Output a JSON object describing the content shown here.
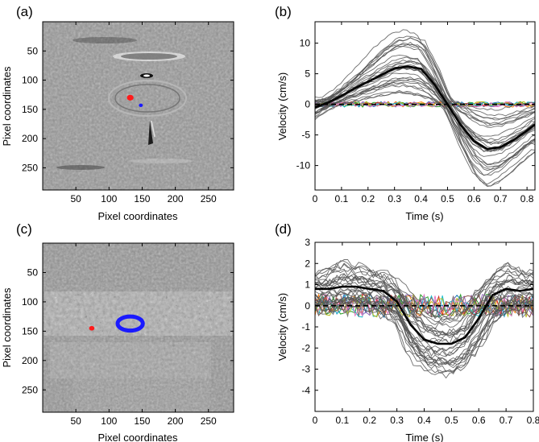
{
  "chart_data": [
    {
      "panel": "a",
      "label": "(a)",
      "type": "heatmap",
      "xlabel": "Pixel coordinates",
      "ylabel": "Pixel coordinates",
      "xlim": [
        0,
        288
      ],
      "ylim": [
        288,
        0
      ],
      "xticks": [
        50,
        100,
        150,
        200,
        250
      ],
      "yticks": [
        50,
        100,
        150,
        200,
        250
      ],
      "rois": [
        {
          "name": "red",
          "color": "#ff1a1a",
          "cx": 132,
          "cy": 130,
          "r": 5
        },
        {
          "name": "blue",
          "color": "#1a1aff",
          "cx": 148,
          "cy": 143,
          "r": 3
        }
      ]
    },
    {
      "panel": "b",
      "label": "(b)",
      "type": "line",
      "xlabel": "Time (s)",
      "ylabel": "Velocity (cm/s)",
      "xlim": [
        0,
        0.83
      ],
      "ylim": [
        -14,
        13.5
      ],
      "xticks": [
        0,
        0.1,
        0.2,
        0.3,
        0.4,
        0.5,
        0.6,
        0.7,
        0.8
      ],
      "yticks": [
        -10,
        -5,
        0,
        5,
        10
      ],
      "mean_curve": {
        "t": [
          0,
          0.05,
          0.1,
          0.15,
          0.2,
          0.25,
          0.3,
          0.35,
          0.4,
          0.45,
          0.5,
          0.55,
          0.6,
          0.65,
          0.7,
          0.75,
          0.8,
          0.83
        ],
        "v": [
          -0.5,
          0.3,
          1.4,
          2.6,
          3.7,
          4.8,
          5.9,
          6.2,
          5.8,
          3.3,
          0.0,
          -3.4,
          -6.0,
          -7.3,
          -7.0,
          -5.8,
          -4.3,
          -3.3
        ]
      },
      "spread": {
        "t": [
          0,
          0.05,
          0.1,
          0.15,
          0.2,
          0.25,
          0.3,
          0.35,
          0.4,
          0.45,
          0.5,
          0.55,
          0.6,
          0.65,
          0.7,
          0.75,
          0.8,
          0.83
        ],
        "upper": [
          1.0,
          1.5,
          3.3,
          5.5,
          8.0,
          10.3,
          12.0,
          12.5,
          11.5,
          7.0,
          1.0,
          0.5,
          0.0,
          -0.5,
          -0.5,
          0.0,
          0.3,
          0.5
        ],
        "lower": [
          -2.5,
          -1.0,
          0.0,
          0.3,
          0.8,
          1.2,
          1.5,
          1.5,
          1.0,
          0.5,
          -1.0,
          -6.5,
          -11.5,
          -14.0,
          -13.0,
          -11.0,
          -9.0,
          -8.0
        ]
      },
      "n_gray_curves": 30,
      "n_flat_curves": 8,
      "reference_level": 0
    },
    {
      "panel": "c",
      "label": "(c)",
      "type": "heatmap",
      "xlabel": "Pixel coordinates",
      "ylabel": "Pixel coordinates",
      "xlim": [
        0,
        288
      ],
      "ylim": [
        288,
        0
      ],
      "xticks": [
        50,
        100,
        150,
        200,
        250
      ],
      "yticks": [
        50,
        100,
        150,
        200,
        250
      ],
      "rois": [
        {
          "name": "red",
          "color": "#ff1a1a",
          "cx": 74,
          "cy": 145,
          "r": 4
        },
        {
          "name": "blue-ring",
          "color": "#1a1aff",
          "cx": 132,
          "cy": 137,
          "rx": 19,
          "ry": 12
        }
      ]
    },
    {
      "panel": "d",
      "label": "(d)",
      "type": "line",
      "xlabel": "Time (s)",
      "ylabel": "Velocity (cm/s)",
      "xlim": [
        0,
        0.8
      ],
      "ylim": [
        -5,
        3
      ],
      "xticks": [
        0,
        0.1,
        0.2,
        0.3,
        0.4,
        0.5,
        0.6,
        0.7,
        0.8
      ],
      "yticks": [
        -4,
        -3,
        -2,
        -1,
        0,
        1,
        2,
        3
      ],
      "mean_curve": {
        "t": [
          0,
          0.05,
          0.1,
          0.15,
          0.2,
          0.25,
          0.3,
          0.35,
          0.4,
          0.45,
          0.5,
          0.55,
          0.6,
          0.65,
          0.7,
          0.75,
          0.8
        ],
        "v": [
          0.8,
          0.8,
          0.9,
          0.9,
          0.8,
          0.7,
          0.2,
          -0.9,
          -1.6,
          -1.8,
          -1.8,
          -1.5,
          -0.6,
          0.5,
          0.8,
          0.7,
          0.8
        ]
      },
      "spread": {
        "t": [
          0,
          0.05,
          0.1,
          0.15,
          0.2,
          0.25,
          0.3,
          0.35,
          0.4,
          0.45,
          0.5,
          0.55,
          0.6,
          0.65,
          0.7,
          0.75,
          0.8
        ],
        "upper": [
          1.6,
          1.8,
          2.2,
          2.0,
          1.8,
          1.6,
          1.3,
          0.5,
          0.0,
          -0.3,
          -0.3,
          0.0,
          1.0,
          1.6,
          2.1,
          1.8,
          1.6
        ],
        "lower": [
          -0.3,
          -0.5,
          -0.3,
          -0.2,
          -0.4,
          -0.6,
          -1.0,
          -2.6,
          -3.2,
          -3.4,
          -3.5,
          -3.0,
          -2.2,
          -1.0,
          -0.5,
          -0.4,
          -0.3
        ]
      },
      "n_gray_curves": 30,
      "n_flat_curves": 10,
      "reference_level": 0
    }
  ]
}
